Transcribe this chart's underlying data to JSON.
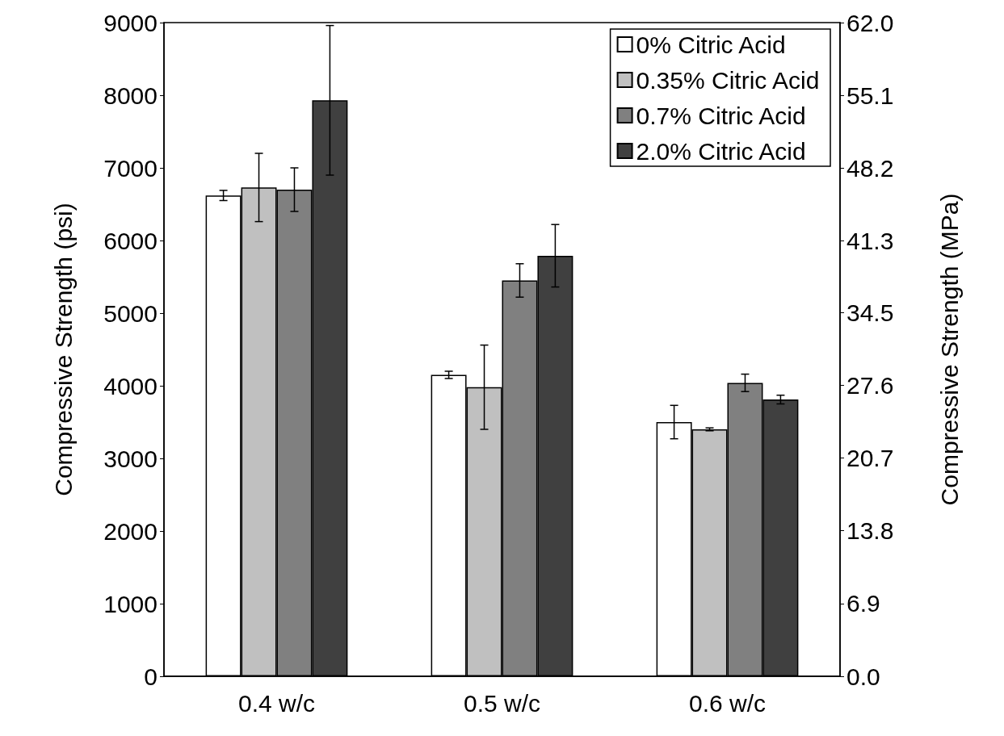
{
  "chart_data": {
    "type": "bar",
    "categories": [
      "0.4 w/c",
      "0.5 w/c",
      "0.6 w/c"
    ],
    "series": [
      {
        "name": "0% Citric Acid",
        "color": "#ffffff",
        "values": [
          6620,
          4150,
          3500
        ],
        "errors": [
          70,
          50,
          230
        ]
      },
      {
        "name": "0.35% Citric Acid",
        "color": "#c0c0c0",
        "values": [
          6730,
          3980,
          3400
        ],
        "errors": [
          470,
          580,
          20
        ]
      },
      {
        "name": "0.7% Citric Acid",
        "color": "#808080",
        "values": [
          6700,
          5450,
          4040
        ],
        "errors": [
          300,
          230,
          120
        ]
      },
      {
        "name": "2.0% Citric Acid",
        "color": "#404040",
        "values": [
          7930,
          5790,
          3810
        ],
        "errors": [
          1030,
          430,
          60
        ]
      }
    ],
    "ylabel": "Compressive Strength (psi)",
    "y2label": "Compressive Strength (MPa)",
    "ylim": [
      0,
      9000
    ],
    "yticks": [
      0,
      1000,
      2000,
      3000,
      4000,
      5000,
      6000,
      7000,
      8000,
      9000
    ],
    "y2lim": [
      0,
      62.0
    ],
    "y2ticks": [
      {
        "value": 0,
        "label": "0.0"
      },
      {
        "value": 6.9,
        "label": "6.9"
      },
      {
        "value": 13.8,
        "label": "13.8"
      },
      {
        "value": 20.7,
        "label": "20.7"
      },
      {
        "value": 27.6,
        "label": "27.6"
      },
      {
        "value": 34.5,
        "label": "34.5"
      },
      {
        "value": 41.3,
        "label": "41.3"
      },
      {
        "value": 48.2,
        "label": "48.2"
      },
      {
        "value": 55.1,
        "label": "55.1"
      },
      {
        "value": 62.0,
        "label": "62.0"
      }
    ],
    "legend": "top right"
  }
}
